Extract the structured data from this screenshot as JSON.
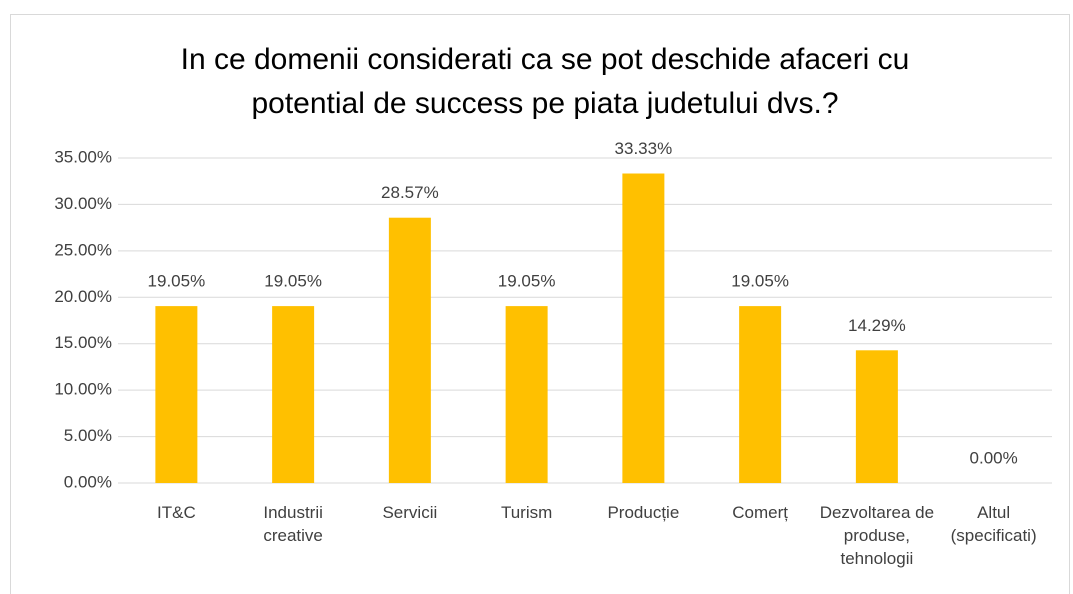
{
  "chart_data": {
    "type": "bar",
    "title": "In ce domenii considerati ca se pot deschide afaceri cu potential de success pe piata judetului dvs.?",
    "categories": [
      "IT&C",
      "Industrii creative",
      "Servicii",
      "Turism",
      "Producție",
      "Comerț",
      "Dezvoltarea de produse, tehnologii",
      "Altul (specificati)"
    ],
    "values": [
      19.05,
      19.05,
      28.57,
      19.05,
      33.33,
      19.05,
      14.29,
      0
    ],
    "value_labels": [
      "19.05%",
      "19.05%",
      "28.57%",
      "19.05%",
      "33.33%",
      "19.05%",
      "14.29%",
      "0.00%"
    ],
    "color": "#ffc000",
    "ylim": [
      0,
      35
    ],
    "yticks": [
      {
        "value": 0,
        "label": "0.00%"
      },
      {
        "value": 5,
        "label": "5.00%"
      },
      {
        "value": 10,
        "label": "10.00%"
      },
      {
        "value": 15,
        "label": "15.00%"
      },
      {
        "value": 20,
        "label": "20.00%"
      },
      {
        "value": 25,
        "label": "25.00%"
      },
      {
        "value": 30,
        "label": "30.00%"
      },
      {
        "value": 35,
        "label": "35.00%"
      }
    ],
    "grid": true
  }
}
